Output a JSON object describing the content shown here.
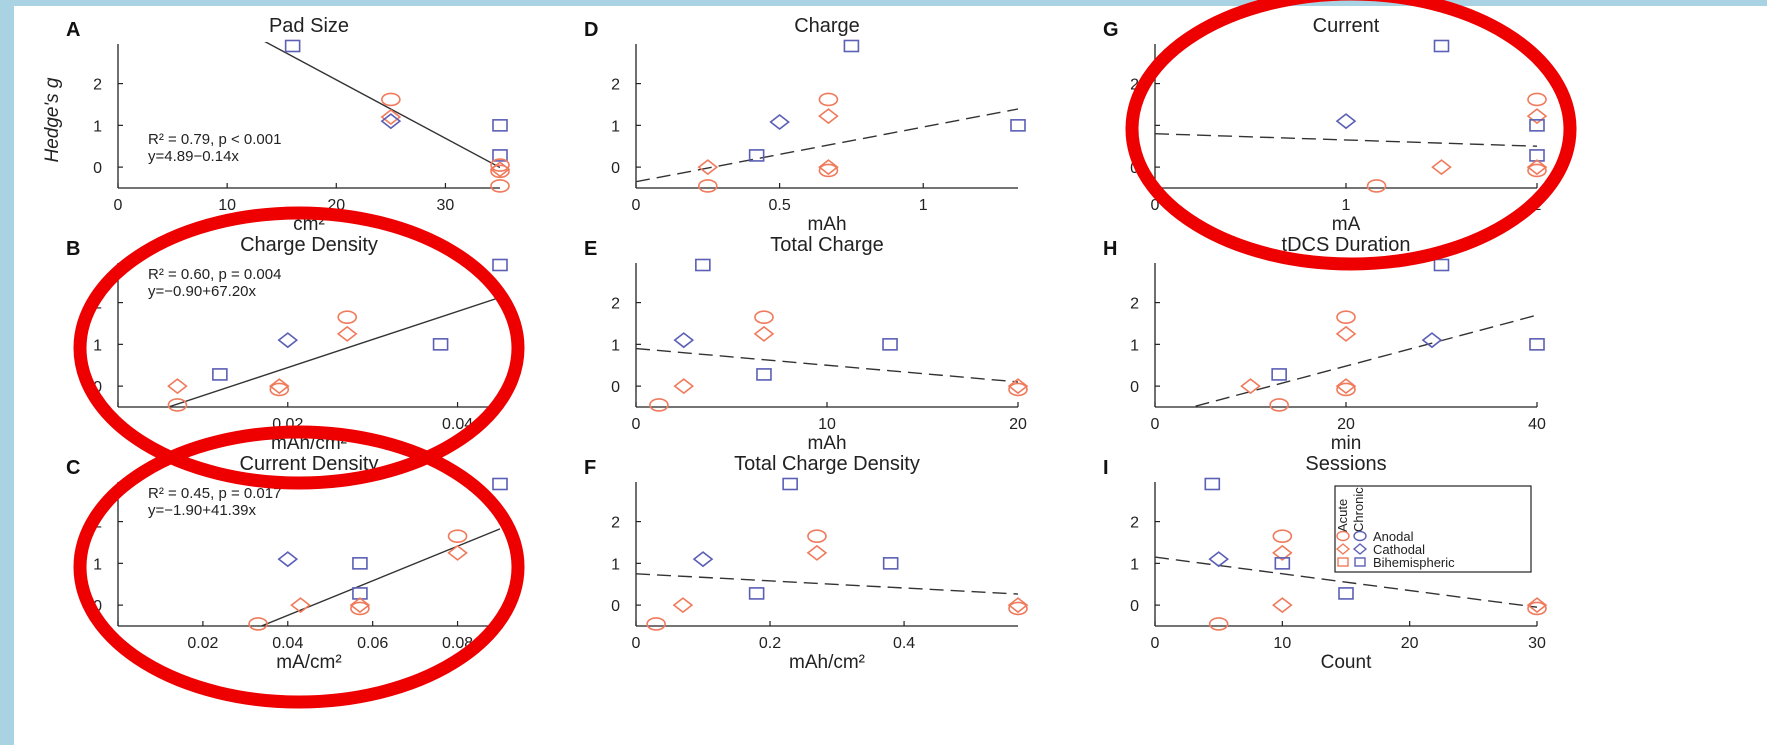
{
  "colors": {
    "background_frame": "#a9d3e3",
    "panel_bg": "#ffffff",
    "acute": "#f07a5c",
    "chronic": "#5b5fb5",
    "axis": "#222222",
    "fit_line": "#333333",
    "highlight_ellipse": "#ee0000"
  },
  "y_axis_label": "Hedge's g",
  "legend": {
    "col_acute": "Acute",
    "col_chronic": "Chronic",
    "rows": [
      "Anodal",
      "Cathodal",
      "Bihemispheric"
    ]
  },
  "chart_data": [
    {
      "id": "A",
      "letter": "A",
      "type": "scatter",
      "title": "Pad Size",
      "xlabel": "cm²",
      "xlim": [
        0,
        35
      ],
      "ylim": [
        -0.5,
        2.9
      ],
      "xticks": [
        0,
        10,
        20,
        30
      ],
      "xtick_labels": [
        "0",
        "10",
        "20",
        "30"
      ],
      "yticks": [
        0,
        1,
        2
      ],
      "fit": {
        "type": "solid",
        "intercept": 4.89,
        "slope": -0.14
      },
      "annotation": [
        "R² = 0.79, p < 0.001",
        "y=4.89−0.14x"
      ],
      "points": [
        {
          "x": 16,
          "y": 2.9,
          "shape": "square",
          "group": "chronic"
        },
        {
          "x": 25,
          "y": 1.62,
          "shape": "circle",
          "group": "acute"
        },
        {
          "x": 25,
          "y": 1.2,
          "shape": "diamond",
          "group": "acute"
        },
        {
          "x": 25,
          "y": 1.1,
          "shape": "diamond",
          "group": "chronic"
        },
        {
          "x": 35,
          "y": 1.0,
          "shape": "square",
          "group": "chronic"
        },
        {
          "x": 35,
          "y": 0.28,
          "shape": "square",
          "group": "chronic"
        },
        {
          "x": 35,
          "y": 0.05,
          "shape": "circle",
          "group": "acute"
        },
        {
          "x": 35,
          "y": -0.05,
          "shape": "diamond",
          "group": "acute"
        },
        {
          "x": 35,
          "y": -0.1,
          "shape": "circle",
          "group": "acute"
        },
        {
          "x": 35,
          "y": -0.45,
          "shape": "circle",
          "group": "acute"
        }
      ]
    },
    {
      "id": "D",
      "letter": "D",
      "type": "scatter",
      "title": "Charge",
      "xlabel": "mAh",
      "xlim": [
        0,
        1.33
      ],
      "ylim": [
        -0.5,
        2.9
      ],
      "xticks": [
        0,
        0.5,
        1
      ],
      "xtick_labels": [
        "0",
        "0.5",
        "1"
      ],
      "yticks": [
        0,
        1,
        2
      ],
      "fit": {
        "type": "dashed",
        "intercept": -0.35,
        "slope": 1.31
      },
      "points": [
        {
          "x": 0.75,
          "y": 2.9,
          "shape": "square",
          "group": "chronic"
        },
        {
          "x": 0.67,
          "y": 1.62,
          "shape": "circle",
          "group": "acute"
        },
        {
          "x": 0.67,
          "y": 1.22,
          "shape": "diamond",
          "group": "acute"
        },
        {
          "x": 0.5,
          "y": 1.08,
          "shape": "diamond",
          "group": "chronic"
        },
        {
          "x": 1.33,
          "y": 1.0,
          "shape": "square",
          "group": "chronic"
        },
        {
          "x": 0.42,
          "y": 0.28,
          "shape": "square",
          "group": "chronic"
        },
        {
          "x": 0.25,
          "y": 0.0,
          "shape": "diamond",
          "group": "acute"
        },
        {
          "x": 0.25,
          "y": -0.45,
          "shape": "circle",
          "group": "acute"
        },
        {
          "x": 0.67,
          "y": 0.0,
          "shape": "diamond",
          "group": "acute"
        },
        {
          "x": 0.67,
          "y": -0.08,
          "shape": "circle",
          "group": "acute"
        }
      ]
    },
    {
      "id": "G",
      "letter": "G",
      "type": "scatter",
      "title": "Current",
      "xlabel": "mA",
      "xlim": [
        0,
        2
      ],
      "ylim": [
        -0.5,
        2.9
      ],
      "xticks": [
        0,
        1,
        2
      ],
      "xtick_labels": [
        "0",
        "1",
        "2"
      ],
      "yticks": [
        0,
        1,
        2
      ],
      "fit": {
        "type": "dashed",
        "intercept": 0.8,
        "slope": -0.15
      },
      "points": [
        {
          "x": 1.5,
          "y": 2.9,
          "shape": "square",
          "group": "chronic"
        },
        {
          "x": 2,
          "y": 1.62,
          "shape": "circle",
          "group": "acute"
        },
        {
          "x": 2,
          "y": 1.22,
          "shape": "diamond",
          "group": "acute"
        },
        {
          "x": 1,
          "y": 1.1,
          "shape": "diamond",
          "group": "chronic"
        },
        {
          "x": 2,
          "y": 1.0,
          "shape": "square",
          "group": "chronic"
        },
        {
          "x": 2,
          "y": 0.28,
          "shape": "square",
          "group": "chronic"
        },
        {
          "x": 1.5,
          "y": 0.0,
          "shape": "diamond",
          "group": "acute"
        },
        {
          "x": 1.16,
          "y": -0.45,
          "shape": "circle",
          "group": "acute"
        },
        {
          "x": 2,
          "y": 0.0,
          "shape": "diamond",
          "group": "acute"
        },
        {
          "x": 2,
          "y": -0.08,
          "shape": "circle",
          "group": "acute"
        }
      ]
    },
    {
      "id": "B",
      "letter": "B",
      "type": "scatter",
      "title": "Charge Density",
      "xlabel": "mAh/cm²",
      "xlim": [
        0,
        0.045
      ],
      "ylim": [
        -0.5,
        2.9
      ],
      "xticks": [
        0,
        0.02,
        0.04
      ],
      "xtick_labels": [
        "0",
        "0.02",
        "0.04"
      ],
      "yticks": [
        0,
        1,
        2
      ],
      "fit": {
        "type": "solid",
        "intercept": -0.9,
        "slope": 67.2
      },
      "annotation": [
        "R² = 0.60, p = 0.004",
        "y=−0.90+67.20x"
      ],
      "points": [
        {
          "x": 0.045,
          "y": 2.9,
          "shape": "square",
          "group": "chronic"
        },
        {
          "x": 0.027,
          "y": 1.65,
          "shape": "circle",
          "group": "acute"
        },
        {
          "x": 0.027,
          "y": 1.25,
          "shape": "diamond",
          "group": "acute"
        },
        {
          "x": 0.02,
          "y": 1.1,
          "shape": "diamond",
          "group": "chronic"
        },
        {
          "x": 0.038,
          "y": 1.0,
          "shape": "square",
          "group": "chronic"
        },
        {
          "x": 0.012,
          "y": 0.28,
          "shape": "square",
          "group": "chronic"
        },
        {
          "x": 0.007,
          "y": 0.0,
          "shape": "diamond",
          "group": "acute"
        },
        {
          "x": 0.007,
          "y": -0.45,
          "shape": "circle",
          "group": "acute"
        },
        {
          "x": 0.019,
          "y": 0.0,
          "shape": "diamond",
          "group": "acute"
        },
        {
          "x": 0.019,
          "y": -0.08,
          "shape": "circle",
          "group": "acute"
        }
      ]
    },
    {
      "id": "E",
      "letter": "E",
      "type": "scatter",
      "title": "Total Charge",
      "xlabel": "mAh",
      "xlim": [
        0,
        20
      ],
      "ylim": [
        -0.5,
        2.9
      ],
      "xticks": [
        0,
        10,
        20
      ],
      "xtick_labels": [
        "0",
        "10",
        "20"
      ],
      "yticks": [
        0,
        1,
        2
      ],
      "fit": {
        "type": "dashed",
        "intercept": 0.9,
        "slope": -0.04
      },
      "points": [
        {
          "x": 3.5,
          "y": 2.9,
          "shape": "square",
          "group": "chronic"
        },
        {
          "x": 6.7,
          "y": 1.65,
          "shape": "circle",
          "group": "acute"
        },
        {
          "x": 6.7,
          "y": 1.25,
          "shape": "diamond",
          "group": "acute"
        },
        {
          "x": 2.5,
          "y": 1.1,
          "shape": "diamond",
          "group": "chronic"
        },
        {
          "x": 13.3,
          "y": 1.0,
          "shape": "square",
          "group": "chronic"
        },
        {
          "x": 6.7,
          "y": 0.28,
          "shape": "square",
          "group": "chronic"
        },
        {
          "x": 2.5,
          "y": 0.0,
          "shape": "diamond",
          "group": "acute"
        },
        {
          "x": 1.2,
          "y": -0.45,
          "shape": "circle",
          "group": "acute"
        },
        {
          "x": 20,
          "y": 0.0,
          "shape": "diamond",
          "group": "acute"
        },
        {
          "x": 20,
          "y": -0.08,
          "shape": "circle",
          "group": "acute"
        }
      ]
    },
    {
      "id": "H",
      "letter": "H",
      "type": "scatter",
      "title": "tDCS Duration",
      "xlabel": "min",
      "xlim": [
        0,
        40
      ],
      "ylim": [
        -0.5,
        2.9
      ],
      "xticks": [
        0,
        20,
        40
      ],
      "xtick_labels": [
        "0",
        "20",
        "40"
      ],
      "yticks": [
        0,
        1,
        2
      ],
      "fit": {
        "type": "dashed",
        "intercept": -0.74,
        "slope": 0.061
      },
      "points": [
        {
          "x": 30,
          "y": 2.9,
          "shape": "square",
          "group": "chronic"
        },
        {
          "x": 20,
          "y": 1.65,
          "shape": "circle",
          "group": "acute"
        },
        {
          "x": 20,
          "y": 1.25,
          "shape": "diamond",
          "group": "acute"
        },
        {
          "x": 29,
          "y": 1.1,
          "shape": "diamond",
          "group": "chronic"
        },
        {
          "x": 40,
          "y": 1.0,
          "shape": "square",
          "group": "chronic"
        },
        {
          "x": 13,
          "y": 0.28,
          "shape": "square",
          "group": "chronic"
        },
        {
          "x": 10,
          "y": 0.0,
          "shape": "diamond",
          "group": "acute"
        },
        {
          "x": 13,
          "y": -0.45,
          "shape": "circle",
          "group": "acute"
        },
        {
          "x": 20,
          "y": 0.0,
          "shape": "diamond",
          "group": "acute"
        },
        {
          "x": 20,
          "y": -0.08,
          "shape": "circle",
          "group": "acute"
        }
      ]
    },
    {
      "id": "C",
      "letter": "C",
      "type": "scatter",
      "title": "Current Density",
      "xlabel": "mA/cm²",
      "xlim": [
        0,
        0.09
      ],
      "ylim": [
        -0.5,
        2.9
      ],
      "xticks": [
        0,
        0.02,
        0.04,
        0.06,
        0.08
      ],
      "xtick_labels": [
        "0",
        "0.02",
        "0.04",
        "0.06",
        "0.08"
      ],
      "yticks": [
        0,
        1,
        2
      ],
      "fit": {
        "type": "solid",
        "intercept": -1.9,
        "slope": 41.39
      },
      "annotation": [
        "R² = 0.45, p = 0.017",
        "y=−1.90+41.39x"
      ],
      "points": [
        {
          "x": 0.09,
          "y": 2.9,
          "shape": "square",
          "group": "chronic"
        },
        {
          "x": 0.08,
          "y": 1.65,
          "shape": "circle",
          "group": "acute"
        },
        {
          "x": 0.08,
          "y": 1.25,
          "shape": "diamond",
          "group": "acute"
        },
        {
          "x": 0.04,
          "y": 1.1,
          "shape": "diamond",
          "group": "chronic"
        },
        {
          "x": 0.057,
          "y": 1.0,
          "shape": "square",
          "group": "chronic"
        },
        {
          "x": 0.057,
          "y": 0.28,
          "shape": "square",
          "group": "chronic"
        },
        {
          "x": 0.043,
          "y": 0.0,
          "shape": "diamond",
          "group": "acute"
        },
        {
          "x": 0.033,
          "y": -0.45,
          "shape": "circle",
          "group": "acute"
        },
        {
          "x": 0.057,
          "y": 0.0,
          "shape": "diamond",
          "group": "acute"
        },
        {
          "x": 0.057,
          "y": -0.08,
          "shape": "circle",
          "group": "acute"
        }
      ]
    },
    {
      "id": "F",
      "letter": "F",
      "type": "scatter",
      "title": "Total Charge Density",
      "xlabel": "mAh/cm²",
      "xlim": [
        0,
        0.57
      ],
      "ylim": [
        -0.5,
        2.9
      ],
      "xticks": [
        0,
        0.2,
        0.4
      ],
      "xtick_labels": [
        "0",
        "0.2",
        "0.4"
      ],
      "yticks": [
        0,
        1,
        2
      ],
      "fit": {
        "type": "dashed",
        "intercept": 0.75,
        "slope": -0.85
      },
      "points": [
        {
          "x": 0.23,
          "y": 2.9,
          "shape": "square",
          "group": "chronic"
        },
        {
          "x": 0.27,
          "y": 1.65,
          "shape": "circle",
          "group": "acute"
        },
        {
          "x": 0.27,
          "y": 1.25,
          "shape": "diamond",
          "group": "acute"
        },
        {
          "x": 0.1,
          "y": 1.1,
          "shape": "diamond",
          "group": "chronic"
        },
        {
          "x": 0.38,
          "y": 1.0,
          "shape": "square",
          "group": "chronic"
        },
        {
          "x": 0.18,
          "y": 0.28,
          "shape": "square",
          "group": "chronic"
        },
        {
          "x": 0.07,
          "y": 0.0,
          "shape": "diamond",
          "group": "acute"
        },
        {
          "x": 0.03,
          "y": -0.45,
          "shape": "circle",
          "group": "acute"
        },
        {
          "x": 0.57,
          "y": 0.0,
          "shape": "diamond",
          "group": "acute"
        },
        {
          "x": 0.57,
          "y": -0.08,
          "shape": "circle",
          "group": "acute"
        }
      ]
    },
    {
      "id": "I",
      "letter": "I",
      "type": "scatter",
      "title": "Sessions",
      "xlabel": "Count",
      "xlim": [
        0,
        30
      ],
      "ylim": [
        -0.5,
        2.9
      ],
      "xticks": [
        0,
        10,
        20,
        30
      ],
      "xtick_labels": [
        "0",
        "10",
        "20",
        "30"
      ],
      "yticks": [
        0,
        1,
        2
      ],
      "fit": {
        "type": "dashed",
        "intercept": 1.15,
        "slope": -0.04
      },
      "legend": true,
      "points": [
        {
          "x": 4.5,
          "y": 2.9,
          "shape": "square",
          "group": "chronic"
        },
        {
          "x": 10,
          "y": 1.65,
          "shape": "circle",
          "group": "acute"
        },
        {
          "x": 10,
          "y": 1.25,
          "shape": "diamond",
          "group": "acute"
        },
        {
          "x": 5,
          "y": 1.1,
          "shape": "diamond",
          "group": "chronic"
        },
        {
          "x": 10,
          "y": 1.0,
          "shape": "square",
          "group": "chronic"
        },
        {
          "x": 15,
          "y": 0.28,
          "shape": "square",
          "group": "chronic"
        },
        {
          "x": 10,
          "y": 0.0,
          "shape": "diamond",
          "group": "acute"
        },
        {
          "x": 5,
          "y": -0.45,
          "shape": "circle",
          "group": "acute"
        },
        {
          "x": 30,
          "y": 0.0,
          "shape": "diamond",
          "group": "acute"
        },
        {
          "x": 30,
          "y": -0.08,
          "shape": "circle",
          "group": "acute"
        }
      ]
    }
  ],
  "highlighted_panels": [
    "G",
    "B",
    "C"
  ]
}
